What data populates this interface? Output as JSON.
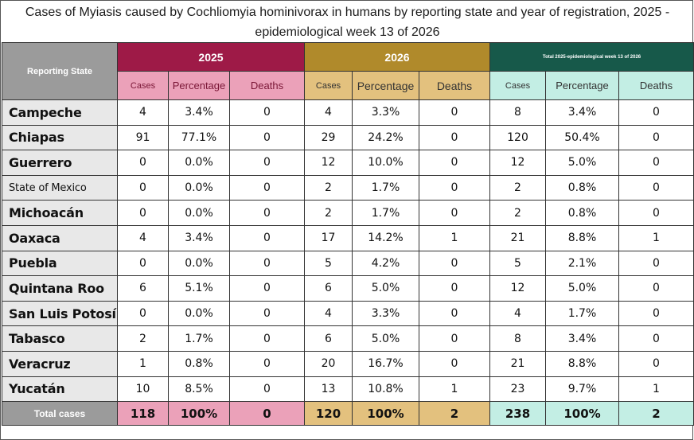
{
  "title": "Cases of Myiasis caused by Cochliomyia hominivorax in humans by reporting state and year of registration, 2025 - epidemiological week 13 of 2026",
  "header": {
    "state_label": "Reporting State",
    "group_2025": "2025",
    "group_2026": "2026",
    "group_total": "Total 2025-epidemiological week 13 of 2026",
    "sub": {
      "cases_2025": "Cases",
      "pct_2025": "Percentage",
      "deaths_2025": "Deaths",
      "cases_2026": "Cases",
      "pct_2026": "Percentage",
      "deaths_2026": "Deaths",
      "cases_tot": "Cases",
      "pct_tot": "Percentage",
      "deaths_tot": "Deaths"
    }
  },
  "rows": [
    {
      "state": "Campeche",
      "c25": "4",
      "p25": "3.4%",
      "d25": "0",
      "c26": "4",
      "p26": "3.3%",
      "d26": "0",
      "ct": "8",
      "pt": "3.4%",
      "dt": "0"
    },
    {
      "state": "Chiapas",
      "c25": "91",
      "p25": "77.1%",
      "d25": "0",
      "c26": "29",
      "p26": "24.2%",
      "d26": "0",
      "ct": "120",
      "pt": "50.4%",
      "dt": "0"
    },
    {
      "state": "Guerrero",
      "c25": "0",
      "p25": "0.0%",
      "d25": "0",
      "c26": "12",
      "p26": "10.0%",
      "d26": "0",
      "ct": "12",
      "pt": "5.0%",
      "dt": "0"
    },
    {
      "state": "State of Mexico",
      "c25": "0",
      "p25": "0.0%",
      "d25": "0",
      "c26": "2",
      "p26": "1.7%",
      "d26": "0",
      "ct": "2",
      "pt": "0.8%",
      "dt": "0"
    },
    {
      "state": "Michoacán",
      "c25": "0",
      "p25": "0.0%",
      "d25": "0",
      "c26": "2",
      "p26": "1.7%",
      "d26": "0",
      "ct": "2",
      "pt": "0.8%",
      "dt": "0"
    },
    {
      "state": "Oaxaca",
      "c25": "4",
      "p25": "3.4%",
      "d25": "0",
      "c26": "17",
      "p26": "14.2%",
      "d26": "1",
      "ct": "21",
      "pt": "8.8%",
      "dt": "1"
    },
    {
      "state": "Puebla",
      "c25": "0",
      "p25": "0.0%",
      "d25": "0",
      "c26": "5",
      "p26": "4.2%",
      "d26": "0",
      "ct": "5",
      "pt": "2.1%",
      "dt": "0"
    },
    {
      "state": "Quintana Roo",
      "c25": "6",
      "p25": "5.1%",
      "d25": "0",
      "c26": "6",
      "p26": "5.0%",
      "d26": "0",
      "ct": "12",
      "pt": "5.0%",
      "dt": "0"
    },
    {
      "state": "San Luis Potosí",
      "c25": "0",
      "p25": "0.0%",
      "d25": "0",
      "c26": "4",
      "p26": "3.3%",
      "d26": "0",
      "ct": "4",
      "pt": "1.7%",
      "dt": "0"
    },
    {
      "state": "Tabasco",
      "c25": "2",
      "p25": "1.7%",
      "d25": "0",
      "c26": "6",
      "p26": "5.0%",
      "d26": "0",
      "ct": "8",
      "pt": "3.4%",
      "dt": "0"
    },
    {
      "state": "Veracruz",
      "c25": "1",
      "p25": "0.8%",
      "d25": "0",
      "c26": "20",
      "p26": "16.7%",
      "d26": "0",
      "ct": "21",
      "pt": "8.8%",
      "dt": "0"
    },
    {
      "state": "Yucatán",
      "c25": "10",
      "p25": "8.5%",
      "d25": "0",
      "c26": "13",
      "p26": "10.8%",
      "d26": "1",
      "ct": "23",
      "pt": "9.7%",
      "dt": "1"
    }
  ],
  "total": {
    "label": "Total cases",
    "c25": "118",
    "p25": "100%",
    "d25": "0",
    "c26": "120",
    "p26": "100%",
    "d26": "2",
    "ct": "238",
    "pt": "100%",
    "dt": "2"
  },
  "colors": {
    "group_2025": "#9e1a47",
    "sub_2025": "#eba1b9",
    "group_2026": "#b08a2b",
    "sub_2026": "#e3c17e",
    "group_total": "#17594a",
    "sub_total": "#c3eee4",
    "state_column": "#9b9b9b"
  }
}
